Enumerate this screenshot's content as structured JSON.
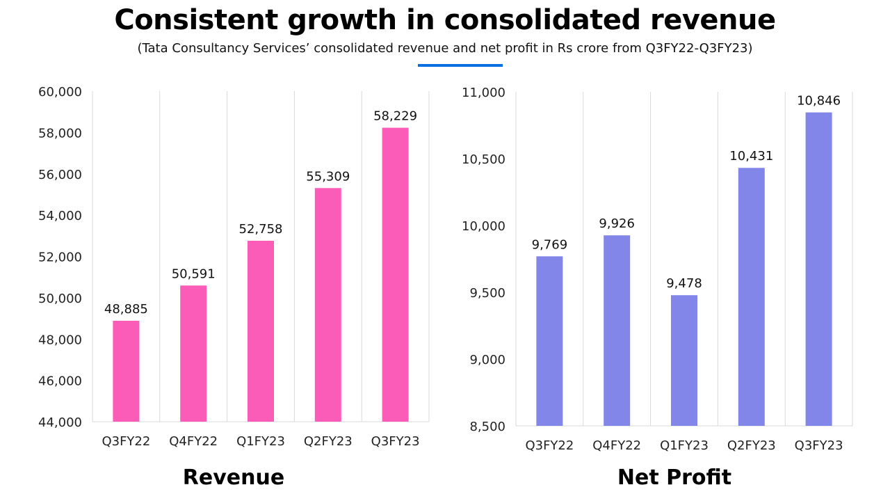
{
  "page": {
    "title": "Consistent growth in consolidated revenue",
    "subtitle": "(Tata Consultancy Services’ consolidated revenue and net profit in Rs crore from Q3FY22-Q3FY23)",
    "accent_color": "#0a6fe0"
  },
  "chart_data": [
    {
      "type": "bar",
      "title": "Revenue",
      "categories": [
        "Q3FY22",
        "Q4FY22",
        "Q1FY23",
        "Q2FY23",
        "Q3FY23"
      ],
      "values": [
        48885,
        50591,
        52758,
        55309,
        58229
      ],
      "value_labels": [
        "48,885",
        "50,591",
        "52,758",
        "55,309",
        "58,229"
      ],
      "ylim": [
        44000,
        60000
      ],
      "yticks": [
        44000,
        46000,
        48000,
        50000,
        52000,
        54000,
        56000,
        58000,
        60000
      ],
      "ytick_labels": [
        "44,000",
        "46,000",
        "48,000",
        "50,000",
        "52,000",
        "54,000",
        "56,000",
        "58,000",
        "60,000"
      ],
      "grid": "vertical",
      "color": "#fb5cb7"
    },
    {
      "type": "bar",
      "title": "Net Profit",
      "categories": [
        "Q3FY22",
        "Q4FY22",
        "Q1FY23",
        "Q2FY23",
        "Q3FY23"
      ],
      "values": [
        9769,
        9926,
        9478,
        10431,
        10846
      ],
      "value_labels": [
        "9,769",
        "9,926",
        "9,478",
        "10,431",
        "10,846"
      ],
      "ylim": [
        8500,
        11000
      ],
      "yticks": [
        8500,
        9000,
        9500,
        10000,
        10500,
        11000
      ],
      "ytick_labels": [
        "8,500",
        "9,000",
        "9,500",
        "10,000",
        "10,500",
        "11,000"
      ],
      "grid": "vertical",
      "color": "#8286e8"
    }
  ]
}
